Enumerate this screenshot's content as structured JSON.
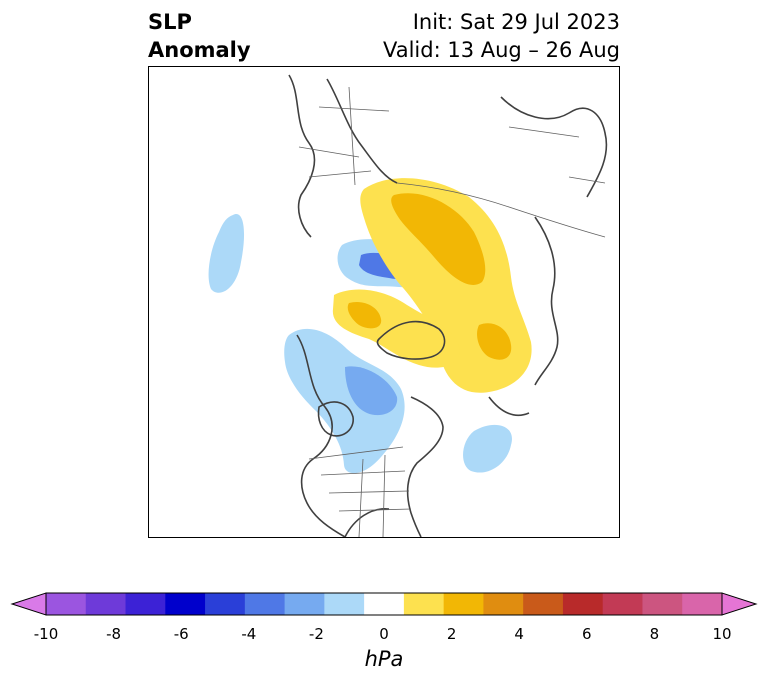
{
  "title": {
    "left_line1": "SLP",
    "left_line2": "Anomaly",
    "right_line1": "Init: Sat 29 Jul 2023",
    "right_line2": "Valid: 13 Aug – 26 Aug"
  },
  "colorbar": {
    "label": "hPa",
    "ticks": [
      "-10",
      "-8",
      "-6",
      "-4",
      "-2",
      "0",
      "2",
      "4",
      "6",
      "8",
      "10"
    ],
    "colors": [
      "#d97ae8",
      "#9b55e0",
      "#6e3ad9",
      "#3c22d6",
      "#0000cc",
      "#2a3fd8",
      "#4f78e6",
      "#76aaf0",
      "#acd9f8",
      "#ffffff",
      "#fde14f",
      "#f2b705",
      "#e08d10",
      "#c95a1a",
      "#b82a2a",
      "#c23a55",
      "#cc5580",
      "#d965aa",
      "#e575d5"
    ]
  },
  "map": {
    "projection": "north-polar-stereographic",
    "anomaly_colors": {
      "neg_light": "#acd9f8",
      "neg_mid": "#76aaf0",
      "neg_strong": "#4f78e6",
      "pos_light": "#fde14f",
      "pos_mid": "#f2b705",
      "pos_strong": "#e08d10"
    }
  }
}
